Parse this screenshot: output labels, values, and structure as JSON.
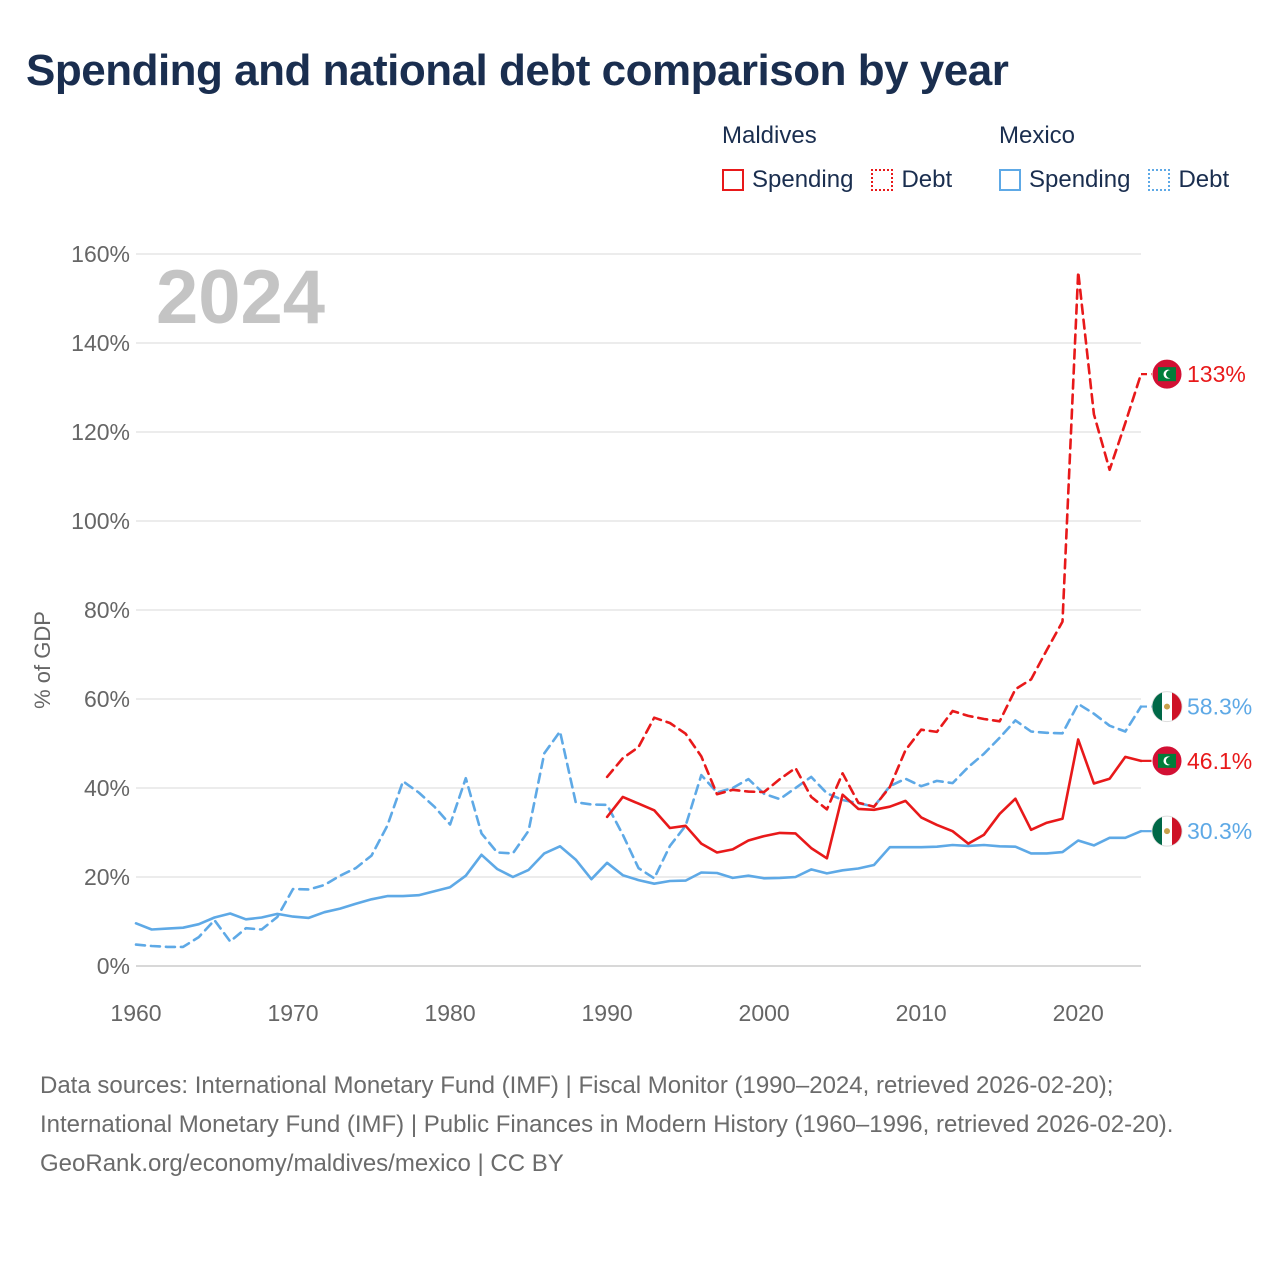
{
  "title": "Spending and national debt comparison by year",
  "legend": {
    "groups": [
      {
        "name": "Maldives",
        "items": [
          {
            "label": "Spending",
            "style": "solid",
            "color": "#e8191a"
          },
          {
            "label": "Debt",
            "style": "dotted",
            "color": "#e8191a"
          }
        ]
      },
      {
        "name": "Mexico",
        "items": [
          {
            "label": "Spending",
            "style": "solid",
            "color": "#5ea9e6"
          },
          {
            "label": "Debt",
            "style": "dotted",
            "color": "#5ea9e6"
          }
        ]
      }
    ]
  },
  "footer": {
    "sources": "Data sources: International Monetary Fund (IMF) | Fiscal Monitor (1990–2024, retrieved 2026-02-20); International Monetary Fund (IMF) | Public Finances in Modern History (1960–1996, retrieved 2026-02-20).",
    "credit": "GeoRank.org/economy/maldives/mexico | CC BY"
  },
  "chart_data": {
    "type": "line",
    "title": "Spending and national debt comparison by year",
    "year_watermark": "2024",
    "xlabel": "",
    "ylabel": "% of GDP",
    "xlim": [
      1960,
      2024
    ],
    "ylim": [
      0,
      160
    ],
    "xticks": [
      1960,
      1970,
      1980,
      1990,
      2000,
      2010,
      2020
    ],
    "yticks": [
      0,
      20,
      40,
      60,
      80,
      100,
      120,
      140,
      160
    ],
    "ytick_suffix": "%",
    "grid": true,
    "colors": {
      "maldives": "#e8191a",
      "mexico": "#5ea9e6"
    },
    "series": [
      {
        "name": "Maldives Spending",
        "country": "maldives",
        "style": "solid",
        "end_label": "46.1%",
        "x": [
          1990,
          1991,
          1992,
          1993,
          1994,
          1995,
          1996,
          1997,
          1998,
          1999,
          2000,
          2001,
          2002,
          2003,
          2004,
          2005,
          2006,
          2007,
          2008,
          2009,
          2010,
          2011,
          2012,
          2013,
          2014,
          2015,
          2016,
          2017,
          2018,
          2019,
          2020,
          2021,
          2022,
          2023,
          2024
        ],
        "y": [
          33.5,
          38,
          36.5,
          35,
          31,
          31.5,
          27.5,
          25.5,
          26.2,
          28.2,
          29.2,
          29.9,
          29.8,
          26.5,
          24.2,
          38.5,
          35.3,
          35.1,
          35.8,
          37.1,
          33.4,
          31.7,
          30.3,
          27.5,
          29.5,
          34.2,
          37.6,
          30.6,
          32.2,
          33.1,
          50.9,
          41,
          42.1,
          47,
          46.1
        ]
      },
      {
        "name": "Maldives Debt",
        "country": "maldives",
        "style": "dashed",
        "end_label": "133%",
        "x": [
          1990,
          1991,
          1992,
          1993,
          1994,
          1995,
          1996,
          1997,
          1998,
          1999,
          2000,
          2001,
          2002,
          2003,
          2004,
          2005,
          2006,
          2007,
          2008,
          2009,
          2010,
          2011,
          2012,
          2013,
          2014,
          2015,
          2016,
          2017,
          2018,
          2019,
          2020,
          2021,
          2022,
          2023,
          2024
        ],
        "y": [
          42.5,
          46.7,
          49.2,
          55.8,
          54.6,
          52.2,
          47.1,
          38.6,
          39.6,
          39.2,
          39.1,
          42,
          44.5,
          38,
          35.2,
          43.3,
          36.7,
          35.8,
          40.2,
          48.5,
          53.1,
          52.6,
          57.3,
          56.2,
          55.5,
          55,
          62.2,
          64.4,
          71,
          77.4,
          156,
          124,
          111.5,
          122,
          133
        ]
      },
      {
        "name": "Mexico Spending",
        "country": "mexico",
        "style": "solid",
        "end_label": "30.3%",
        "x": [
          1960,
          1961,
          1962,
          1963,
          1964,
          1965,
          1966,
          1967,
          1968,
          1969,
          1970,
          1971,
          1972,
          1973,
          1974,
          1975,
          1976,
          1977,
          1978,
          1979,
          1980,
          1981,
          1982,
          1983,
          1984,
          1985,
          1986,
          1987,
          1988,
          1989,
          1990,
          1991,
          1992,
          1993,
          1994,
          1995,
          1996,
          1997,
          1998,
          1999,
          2000,
          2001,
          2002,
          2003,
          2004,
          2005,
          2006,
          2007,
          2008,
          2009,
          2010,
          2011,
          2012,
          2013,
          2014,
          2015,
          2016,
          2017,
          2018,
          2019,
          2020,
          2021,
          2022,
          2023,
          2024
        ],
        "y": [
          9.6,
          8.2,
          8.4,
          8.6,
          9.4,
          10.9,
          11.8,
          10.5,
          10.9,
          11.7,
          11.1,
          10.8,
          12.1,
          12.9,
          14,
          15,
          15.7,
          15.7,
          15.9,
          16.8,
          17.7,
          20.3,
          25,
          21.8,
          20,
          21.6,
          25.3,
          26.9,
          23.9,
          19.5,
          23.2,
          20.4,
          19.3,
          18.5,
          19.1,
          19.2,
          21,
          20.9,
          19.8,
          20.3,
          19.7,
          19.8,
          20,
          21.7,
          20.8,
          21.5,
          21.9,
          22.7,
          26.7,
          26.7,
          26.7,
          26.8,
          27.2,
          27,
          27.2,
          26.9,
          26.8,
          25.3,
          25.3,
          25.6,
          28.2,
          27.1,
          28.8,
          28.8,
          30.3
        ]
      },
      {
        "name": "Mexico Debt",
        "country": "mexico",
        "style": "dashed",
        "end_label": "58.3%",
        "x": [
          1960,
          1961,
          1962,
          1963,
          1964,
          1965,
          1966,
          1967,
          1968,
          1969,
          1970,
          1971,
          1972,
          1973,
          1974,
          1975,
          1976,
          1977,
          1978,
          1979,
          1980,
          1981,
          1982,
          1983,
          1984,
          1985,
          1986,
          1987,
          1988,
          1989,
          1990,
          1991,
          1992,
          1993,
          1994,
          1995,
          1996,
          1997,
          1998,
          1999,
          2000,
          2001,
          2002,
          2003,
          2004,
          2005,
          2006,
          2007,
          2008,
          2009,
          2010,
          2011,
          2012,
          2013,
          2014,
          2015,
          2016,
          2017,
          2018,
          2019,
          2020,
          2021,
          2022,
          2023,
          2024
        ],
        "y": [
          4.8,
          4.5,
          4.3,
          4.3,
          6.5,
          10.3,
          5.5,
          8.5,
          8.2,
          11,
          17.3,
          17.2,
          18.2,
          20.3,
          22,
          24.8,
          31.5,
          41.5,
          39,
          35.8,
          31.8,
          42.2,
          29.8,
          25.5,
          25.3,
          30.4,
          47.8,
          52.7,
          36.8,
          36.3,
          36.2,
          29.5,
          22,
          19.7,
          27,
          31.5,
          42.9,
          39,
          40,
          42,
          38.7,
          37.5,
          40,
          42.5,
          38.8,
          37.3,
          36.6,
          35.8,
          40.4,
          42.1,
          40.4,
          41.6,
          41.1,
          44.7,
          47.7,
          51.3,
          55.2,
          52.7,
          52.4,
          52.3,
          58.9,
          56.7,
          54,
          52.7,
          58.3
        ]
      }
    ]
  }
}
